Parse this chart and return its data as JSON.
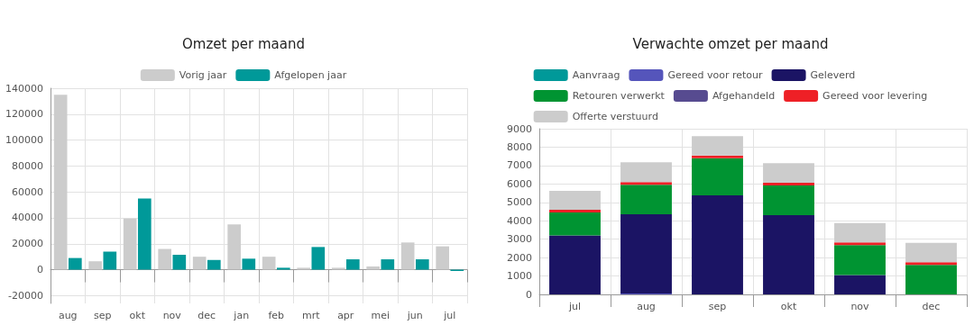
{
  "chart_data": [
    {
      "type": "bar",
      "title": "Omzet per maand",
      "categories": [
        "aug",
        "sep",
        "okt",
        "nov",
        "dec",
        "jan",
        "feb",
        "mrt",
        "apr",
        "mei",
        "jun",
        "jul"
      ],
      "series": [
        {
          "name": "Vorig jaar",
          "color": "#cccccc",
          "values": [
            135000,
            6500,
            39500,
            16000,
            10000,
            35000,
            10000,
            1500,
            1500,
            2500,
            21000,
            18000
          ]
        },
        {
          "name": "Afgelopen jaar",
          "color": "#009999",
          "values": [
            9000,
            14000,
            55000,
            11500,
            7500,
            8500,
            1500,
            17500,
            8000,
            8000,
            8000,
            -1000
          ]
        }
      ],
      "ylim": [
        -26000,
        140000
      ],
      "yticks": [
        -20000,
        0,
        20000,
        40000,
        60000,
        80000,
        100000,
        120000,
        140000
      ],
      "grid": true,
      "legend": "top"
    },
    {
      "type": "bar",
      "title": "Verwachte omzet per maand",
      "categories": [
        "jul",
        "aug",
        "sep",
        "okt",
        "nov",
        "dec"
      ],
      "stacked": true,
      "series": [
        {
          "name": "Aanvraag",
          "color": "#009999",
          "values": [
            null,
            null,
            null,
            null,
            null,
            null
          ]
        },
        {
          "name": "Gereed voor retour",
          "color": "#5555bb",
          "values": [
            null,
            50,
            null,
            null,
            null,
            null
          ]
        },
        {
          "name": "Geleverd",
          "color": "#1b1464",
          "values": [
            3200,
            4300,
            5380,
            4300,
            1050,
            null
          ]
        },
        {
          "name": "Retouren verwerkt",
          "color": "#009432",
          "values": [
            1250,
            1600,
            2020,
            1620,
            1630,
            1600
          ]
        },
        {
          "name": "Afgehandeld",
          "color": "#574b90",
          "values": [
            null,
            null,
            null,
            null,
            null,
            null
          ]
        },
        {
          "name": "Gereed voor levering",
          "color": "#ee2026",
          "values": [
            150,
            150,
            150,
            150,
            150,
            150
          ]
        },
        {
          "name": "Offerte verstuurd",
          "color": "#cccccc",
          "values": [
            1030,
            1080,
            1050,
            1060,
            1050,
            1050
          ]
        }
      ],
      "ylim": [
        0,
        9000
      ],
      "yticks": [
        0,
        1000,
        2000,
        3000,
        4000,
        5000,
        6000,
        7000,
        8000,
        9000
      ],
      "grid": true,
      "legend": "top"
    }
  ]
}
